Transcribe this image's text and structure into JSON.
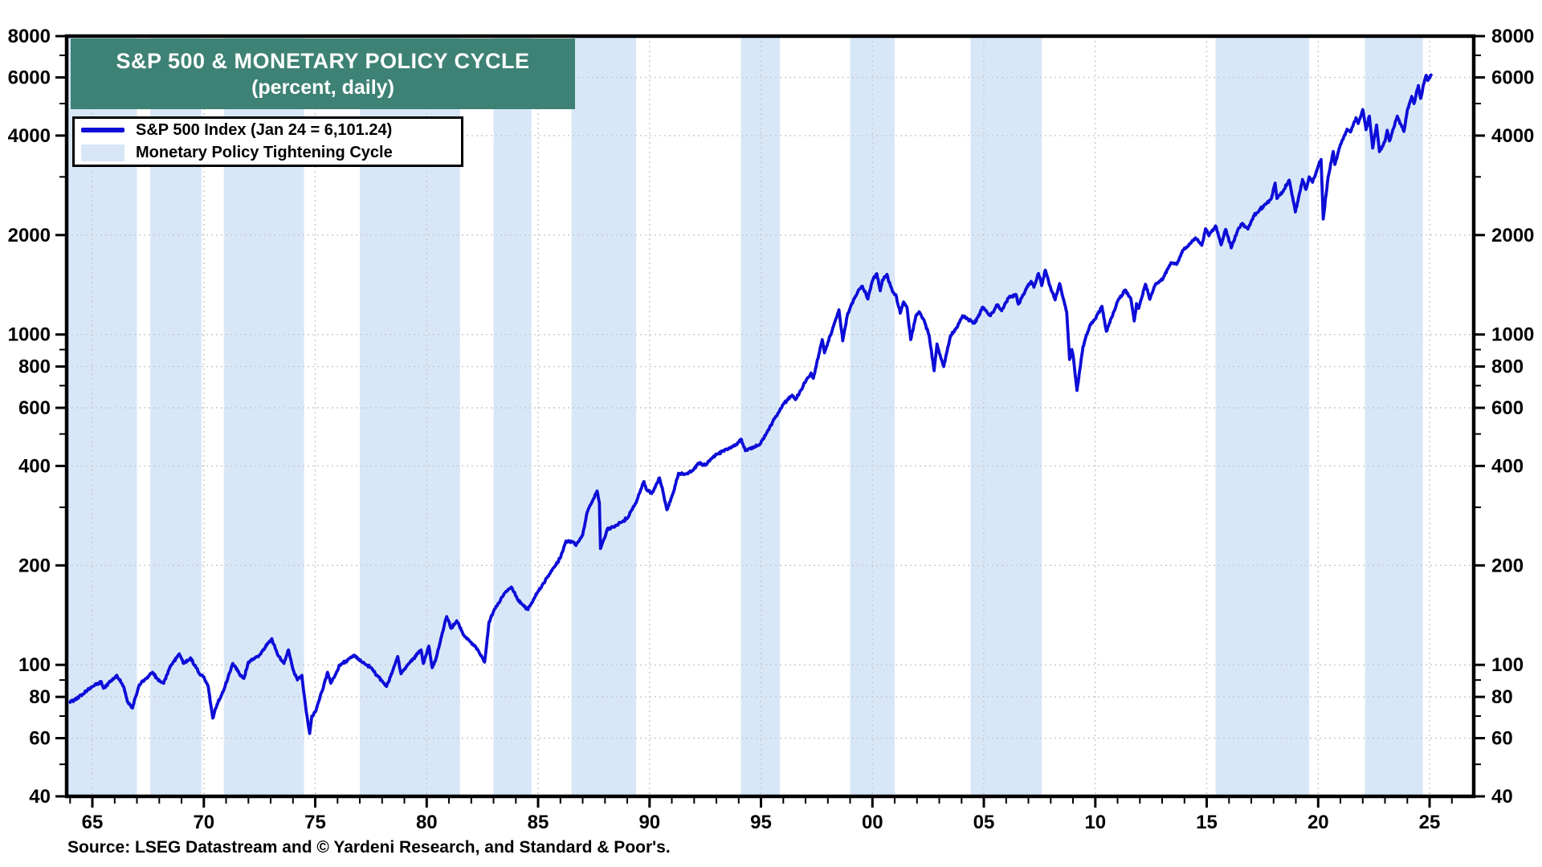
{
  "title": {
    "line1": "S&P 500 & MONETARY POLICY CYCLE",
    "line2": "(percent, daily)"
  },
  "legend": {
    "items": [
      {
        "label": "S&P 500 Index (Jan 24 = 6,101.24)",
        "swatch": "line"
      },
      {
        "label": "Monetary Policy Tightening Cycle",
        "swatch": "band"
      }
    ]
  },
  "source": {
    "text": "Source: LSEG Datastream and © Yardeni Research, and Standard & Poor's."
  },
  "colors": {
    "title_teal": "#3d8274",
    "line_blue": "#0d0dd8",
    "band_blue": "#d8e7f8",
    "grid_gray": "#c9c9c9",
    "axis_black": "#000000"
  },
  "chart_data": {
    "type": "line",
    "title": "S&P 500 & MONETARY POLICY CYCLE",
    "subtitle": "(percent, daily)",
    "ylabel": "",
    "xlabel": "",
    "y_axis": {
      "scale": "log",
      "range": [
        40,
        8000
      ],
      "tick_labels": [
        "8000",
        "6000",
        "4000",
        "2000",
        "1000",
        "800",
        "600",
        "400",
        "200",
        "100",
        "80",
        "60",
        "40"
      ],
      "tick_values": [
        8000,
        6000,
        4000,
        2000,
        1000,
        800,
        600,
        400,
        200,
        100,
        80,
        60,
        40
      ],
      "mirrored_right": true
    },
    "x_axis": {
      "range_years": [
        1963.85,
        2026.97
      ],
      "tick_labels": [
        "65",
        "70",
        "75",
        "80",
        "85",
        "90",
        "95",
        "00",
        "05",
        "10",
        "15",
        "20",
        "25"
      ],
      "tick_years": [
        1965,
        1970,
        1975,
        1980,
        1985,
        1990,
        1995,
        2000,
        2005,
        2010,
        2015,
        2020,
        2025
      ],
      "minor_tick_interval_years": 1
    },
    "grid": {
      "style": "dotted",
      "horizontal_at": [
        6000,
        4000,
        2000,
        1000,
        800,
        600,
        400,
        200,
        100,
        80,
        60
      ],
      "vertical_at_years": [
        1965,
        1970,
        1975,
        1980,
        1985,
        1990,
        1995,
        2000,
        2005,
        2010,
        2015,
        2020,
        2025
      ]
    },
    "bands": {
      "name": "Monetary Policy Tightening Cycle",
      "year_ranges": [
        [
          1963.85,
          1967.0
        ],
        [
          1967.6,
          1969.9
        ],
        [
          1970.9,
          1974.5
        ],
        [
          1977.0,
          1981.5
        ],
        [
          1983.0,
          1984.7
        ],
        [
          1986.5,
          1989.4
        ],
        [
          1994.1,
          1995.85
        ],
        [
          1999.0,
          2001.0
        ],
        [
          2004.4,
          2007.6
        ],
        [
          2015.4,
          2019.6
        ],
        [
          2022.1,
          2024.7
        ]
      ]
    },
    "series": [
      {
        "name": "S&P 500 Index (Jan 24 = 6,101.24)",
        "last_point": {
          "date": "Jan 24",
          "value": 6101.24
        },
        "points": [
          [
            1964.0,
            77
          ],
          [
            1964.5,
            81
          ],
          [
            1965.0,
            86
          ],
          [
            1965.4,
            89
          ],
          [
            1965.5,
            85
          ],
          [
            1966.1,
            93
          ],
          [
            1966.4,
            86
          ],
          [
            1966.6,
            77
          ],
          [
            1966.8,
            74
          ],
          [
            1967.1,
            87
          ],
          [
            1967.7,
            95
          ],
          [
            1967.9,
            91
          ],
          [
            1968.2,
            88
          ],
          [
            1968.5,
            99
          ],
          [
            1968.9,
            108
          ],
          [
            1969.1,
            101
          ],
          [
            1969.4,
            105
          ],
          [
            1969.8,
            94
          ],
          [
            1970.0,
            92
          ],
          [
            1970.2,
            86
          ],
          [
            1970.4,
            69
          ],
          [
            1970.6,
            76
          ],
          [
            1970.9,
            84
          ],
          [
            1971.3,
            101
          ],
          [
            1971.6,
            94
          ],
          [
            1971.8,
            91
          ],
          [
            1972.0,
            102
          ],
          [
            1972.5,
            107
          ],
          [
            1972.95,
            118
          ],
          [
            1973.05,
            120
          ],
          [
            1973.3,
            108
          ],
          [
            1973.6,
            101
          ],
          [
            1973.8,
            111
          ],
          [
            1974.0,
            97
          ],
          [
            1974.2,
            90
          ],
          [
            1974.4,
            93
          ],
          [
            1974.6,
            72
          ],
          [
            1974.75,
            62
          ],
          [
            1974.85,
            70
          ],
          [
            1975.0,
            72
          ],
          [
            1975.3,
            83
          ],
          [
            1975.55,
            95
          ],
          [
            1975.7,
            88
          ],
          [
            1976.0,
            96
          ],
          [
            1976.1,
            100
          ],
          [
            1976.5,
            104
          ],
          [
            1976.75,
            107
          ],
          [
            1977.0,
            103
          ],
          [
            1977.5,
            98
          ],
          [
            1978.2,
            86
          ],
          [
            1978.5,
            97
          ],
          [
            1978.7,
            106
          ],
          [
            1978.85,
            94
          ],
          [
            1979.1,
            99
          ],
          [
            1979.75,
            111
          ],
          [
            1979.85,
            101
          ],
          [
            1980.1,
            114
          ],
          [
            1980.25,
            98
          ],
          [
            1980.45,
            106
          ],
          [
            1980.7,
            125
          ],
          [
            1980.9,
            140
          ],
          [
            1981.1,
            129
          ],
          [
            1981.35,
            136
          ],
          [
            1981.7,
            122
          ],
          [
            1982.0,
            117
          ],
          [
            1982.3,
            111
          ],
          [
            1982.6,
            102
          ],
          [
            1982.8,
            135
          ],
          [
            1983.0,
            145
          ],
          [
            1983.5,
            165
          ],
          [
            1983.8,
            172
          ],
          [
            1984.1,
            157
          ],
          [
            1984.55,
            147
          ],
          [
            1985.0,
            167
          ],
          [
            1985.5,
            188
          ],
          [
            1986.0,
            211
          ],
          [
            1986.25,
            237
          ],
          [
            1986.55,
            236
          ],
          [
            1986.7,
            230
          ],
          [
            1987.0,
            247
          ],
          [
            1987.2,
            290
          ],
          [
            1987.65,
            336
          ],
          [
            1987.75,
            310
          ],
          [
            1987.8,
            225
          ],
          [
            1987.95,
            240
          ],
          [
            1988.1,
            257
          ],
          [
            1988.4,
            262
          ],
          [
            1988.8,
            272
          ],
          [
            1989.0,
            278
          ],
          [
            1989.4,
            310
          ],
          [
            1989.75,
            359
          ],
          [
            1989.85,
            340
          ],
          [
            1990.1,
            330
          ],
          [
            1990.45,
            368
          ],
          [
            1990.6,
            335
          ],
          [
            1990.78,
            295
          ],
          [
            1991.05,
            330
          ],
          [
            1991.3,
            380
          ],
          [
            1991.6,
            378
          ],
          [
            1991.95,
            388
          ],
          [
            1992.2,
            408
          ],
          [
            1992.5,
            402
          ],
          [
            1993.0,
            435
          ],
          [
            1993.5,
            448
          ],
          [
            1993.9,
            466
          ],
          [
            1994.1,
            482
          ],
          [
            1994.3,
            445
          ],
          [
            1994.6,
            455
          ],
          [
            1994.9,
            462
          ],
          [
            1995.2,
            495
          ],
          [
            1995.6,
            555
          ],
          [
            1996.0,
            615
          ],
          [
            1996.4,
            655
          ],
          [
            1996.55,
            635
          ],
          [
            1996.9,
            700
          ],
          [
            1997.1,
            740
          ],
          [
            1997.25,
            765
          ],
          [
            1997.35,
            737
          ],
          [
            1997.75,
            965
          ],
          [
            1997.85,
            880
          ],
          [
            1998.1,
            990
          ],
          [
            1998.5,
            1187
          ],
          [
            1998.67,
            957
          ],
          [
            1998.9,
            1160
          ],
          [
            1999.05,
            1229
          ],
          [
            1999.35,
            1350
          ],
          [
            1999.55,
            1400
          ],
          [
            1999.8,
            1280
          ],
          [
            2000.0,
            1455
          ],
          [
            2000.2,
            1527
          ],
          [
            2000.35,
            1356
          ],
          [
            2000.45,
            1460
          ],
          [
            2000.65,
            1520
          ],
          [
            2000.9,
            1350
          ],
          [
            2001.05,
            1320
          ],
          [
            2001.25,
            1160
          ],
          [
            2001.4,
            1255
          ],
          [
            2001.55,
            1210
          ],
          [
            2001.72,
            965
          ],
          [
            2001.95,
            1140
          ],
          [
            2002.1,
            1172
          ],
          [
            2002.3,
            1110
          ],
          [
            2002.55,
            990
          ],
          [
            2002.77,
            777
          ],
          [
            2002.9,
            936
          ],
          [
            2003.0,
            880
          ],
          [
            2003.2,
            800
          ],
          [
            2003.5,
            990
          ],
          [
            2003.8,
            1050
          ],
          [
            2004.05,
            1140
          ],
          [
            2004.3,
            1110
          ],
          [
            2004.6,
            1086
          ],
          [
            2004.95,
            1210
          ],
          [
            2005.3,
            1140
          ],
          [
            2005.6,
            1230
          ],
          [
            2005.8,
            1180
          ],
          [
            2006.1,
            1290
          ],
          [
            2006.45,
            1320
          ],
          [
            2006.55,
            1236
          ],
          [
            2007.0,
            1418
          ],
          [
            2007.15,
            1440
          ],
          [
            2007.25,
            1390
          ],
          [
            2007.45,
            1530
          ],
          [
            2007.6,
            1406
          ],
          [
            2007.76,
            1565
          ],
          [
            2008.0,
            1380
          ],
          [
            2008.2,
            1273
          ],
          [
            2008.4,
            1426
          ],
          [
            2008.6,
            1260
          ],
          [
            2008.72,
            1166
          ],
          [
            2008.85,
            840
          ],
          [
            2008.95,
            900
          ],
          [
            2009.0,
            870
          ],
          [
            2009.18,
            677
          ],
          [
            2009.45,
            920
          ],
          [
            2009.75,
            1060
          ],
          [
            2010.0,
            1115
          ],
          [
            2010.3,
            1217
          ],
          [
            2010.5,
            1023
          ],
          [
            2010.75,
            1130
          ],
          [
            2011.0,
            1258
          ],
          [
            2011.35,
            1363
          ],
          [
            2011.6,
            1280
          ],
          [
            2011.75,
            1099
          ],
          [
            2011.85,
            1240
          ],
          [
            2011.95,
            1200
          ],
          [
            2012.25,
            1419
          ],
          [
            2012.45,
            1278
          ],
          [
            2012.7,
            1420
          ],
          [
            2013.0,
            1462
          ],
          [
            2013.4,
            1650
          ],
          [
            2013.65,
            1630
          ],
          [
            2013.95,
            1805
          ],
          [
            2014.15,
            1848
          ],
          [
            2014.5,
            1960
          ],
          [
            2014.78,
            1862
          ],
          [
            2014.95,
            2090
          ],
          [
            2015.1,
            1990
          ],
          [
            2015.4,
            2131
          ],
          [
            2015.65,
            1868
          ],
          [
            2015.85,
            2080
          ],
          [
            2016.1,
            1829
          ],
          [
            2016.4,
            2075
          ],
          [
            2016.6,
            2170
          ],
          [
            2016.85,
            2085
          ],
          [
            2017.1,
            2280
          ],
          [
            2017.5,
            2430
          ],
          [
            2017.9,
            2580
          ],
          [
            2018.07,
            2873
          ],
          [
            2018.15,
            2581
          ],
          [
            2018.4,
            2700
          ],
          [
            2018.7,
            2931
          ],
          [
            2018.98,
            2351
          ],
          [
            2019.3,
            2946
          ],
          [
            2019.45,
            2750
          ],
          [
            2019.6,
            3000
          ],
          [
            2019.75,
            2890
          ],
          [
            2020.0,
            3231
          ],
          [
            2020.13,
            3386
          ],
          [
            2020.23,
            2237
          ],
          [
            2020.45,
            3000
          ],
          [
            2020.68,
            3580
          ],
          [
            2020.75,
            3270
          ],
          [
            2021.0,
            3756
          ],
          [
            2021.3,
            4180
          ],
          [
            2021.45,
            4100
          ],
          [
            2021.7,
            4530
          ],
          [
            2021.8,
            4350
          ],
          [
            2022.0,
            4797
          ],
          [
            2022.15,
            4170
          ],
          [
            2022.3,
            4580
          ],
          [
            2022.45,
            3667
          ],
          [
            2022.62,
            4305
          ],
          [
            2022.75,
            3577
          ],
          [
            2023.0,
            3840
          ],
          [
            2023.1,
            4150
          ],
          [
            2023.2,
            3855
          ],
          [
            2023.55,
            4580
          ],
          [
            2023.85,
            4117
          ],
          [
            2024.0,
            4770
          ],
          [
            2024.2,
            5254
          ],
          [
            2024.3,
            5000
          ],
          [
            2024.5,
            5667
          ],
          [
            2024.6,
            5186
          ],
          [
            2024.75,
            5760
          ],
          [
            2024.85,
            6090
          ],
          [
            2024.92,
            5870
          ],
          [
            2025.07,
            6101.24
          ]
        ]
      }
    ]
  }
}
